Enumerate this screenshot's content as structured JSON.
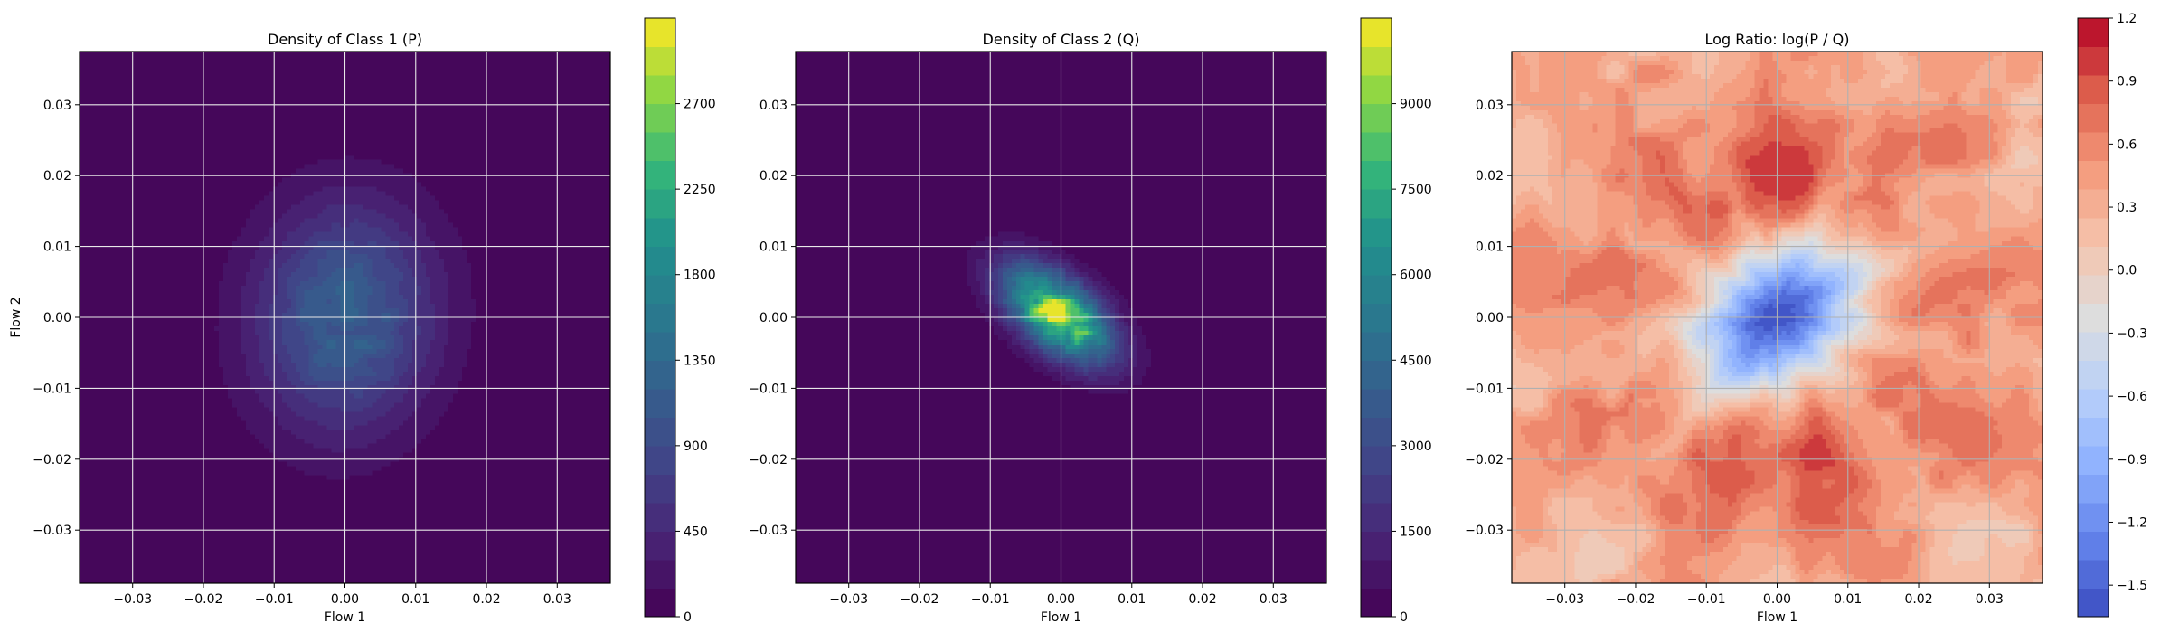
{
  "chart_data": [
    {
      "type": "heatmap",
      "title": "Density of Class 1 (P)",
      "xlabel": "Flow 1",
      "ylabel": "Flow 2",
      "xlim": [
        -0.0375,
        0.0375
      ],
      "ylim": [
        -0.0375,
        0.0375
      ],
      "x_ticks": [
        -0.03,
        -0.02,
        -0.01,
        0.0,
        0.01,
        0.02,
        0.03
      ],
      "x_tick_labels": [
        "−0.03",
        "−0.02",
        "−0.01",
        "0.00",
        "0.01",
        "0.02",
        "0.03"
      ],
      "y_ticks": [
        -0.03,
        -0.02,
        -0.01,
        0.0,
        0.01,
        0.02,
        0.03
      ],
      "y_tick_labels": [
        "−0.03",
        "−0.02",
        "−0.01",
        "0.00",
        "0.01",
        "0.02",
        "0.03"
      ],
      "grid": true,
      "colormap": "viridis",
      "colorbar": {
        "range": [
          0,
          3150
        ],
        "ticks": [
          0,
          450,
          900,
          1350,
          1800,
          2250,
          2700
        ],
        "tick_labels": [
          "0",
          "450",
          "900",
          "1350",
          "1800",
          "2250",
          "2700"
        ]
      },
      "distribution": {
        "center": [
          0.0,
          0.0
        ],
        "sigma_x": 0.0088,
        "sigma_y": 0.011,
        "rho": 0.05,
        "peak": 1250
      }
    },
    {
      "type": "heatmap",
      "title": "Density of Class 2 (Q)",
      "xlabel": "Flow 1",
      "ylabel": "",
      "xlim": [
        -0.0375,
        0.0375
      ],
      "ylim": [
        -0.0375,
        0.0375
      ],
      "x_ticks": [
        -0.03,
        -0.02,
        -0.01,
        0.0,
        0.01,
        0.02,
        0.03
      ],
      "x_tick_labels": [
        "−0.03",
        "−0.02",
        "−0.01",
        "0.00",
        "0.01",
        "0.02",
        "0.03"
      ],
      "y_ticks": [
        -0.03,
        -0.02,
        -0.01,
        0.0,
        0.01,
        0.02,
        0.03
      ],
      "y_tick_labels": [
        "−0.03",
        "−0.02",
        "−0.01",
        "0.00",
        "0.01",
        "0.02",
        "0.03"
      ],
      "grid": true,
      "colormap": "viridis",
      "colorbar": {
        "range": [
          0,
          10500
        ],
        "ticks": [
          0,
          1500,
          3000,
          4500,
          6000,
          7500,
          9000
        ],
        "tick_labels": [
          "0",
          "1500",
          "3000",
          "4500",
          "6000",
          "7500",
          "9000"
        ]
      },
      "distribution": {
        "center": [
          -0.0005,
          0.0005
        ],
        "sigma_x": 0.0053,
        "sigma_y": 0.0047,
        "rho": -0.55,
        "peak": 9800
      }
    },
    {
      "type": "heatmap",
      "title": "Log Ratio: log(P / Q)",
      "xlabel": "Flow 1",
      "ylabel": "",
      "xlim": [
        -0.0375,
        0.0375
      ],
      "ylim": [
        -0.0375,
        0.0375
      ],
      "x_ticks": [
        -0.03,
        -0.02,
        -0.01,
        0.0,
        0.01,
        0.02,
        0.03
      ],
      "x_tick_labels": [
        "−0.03",
        "−0.02",
        "−0.01",
        "0.00",
        "0.01",
        "0.02",
        "0.03"
      ],
      "y_ticks": [
        -0.03,
        -0.02,
        -0.01,
        0.0,
        0.01,
        0.02,
        0.03
      ],
      "y_tick_labels": [
        "−0.03",
        "−0.02",
        "−0.01",
        "0.00",
        "0.01",
        "0.02",
        "0.03"
      ],
      "grid": true,
      "colormap": "coolwarm",
      "colorbar": {
        "range": [
          -1.65,
          1.2
        ],
        "ticks": [
          -1.5,
          -1.2,
          -0.9,
          -0.6,
          -0.3,
          0.0,
          0.3,
          0.6,
          0.9,
          1.2
        ],
        "tick_labels": [
          "−1.5",
          "−1.2",
          "−0.9",
          "−0.6",
          "−0.3",
          "0.0",
          "0.3",
          "0.6",
          "0.9",
          "1.2"
        ]
      },
      "distribution": {
        "center_value": -1.55,
        "background_value": 0.55,
        "lobe_value": 0.9
      }
    }
  ]
}
